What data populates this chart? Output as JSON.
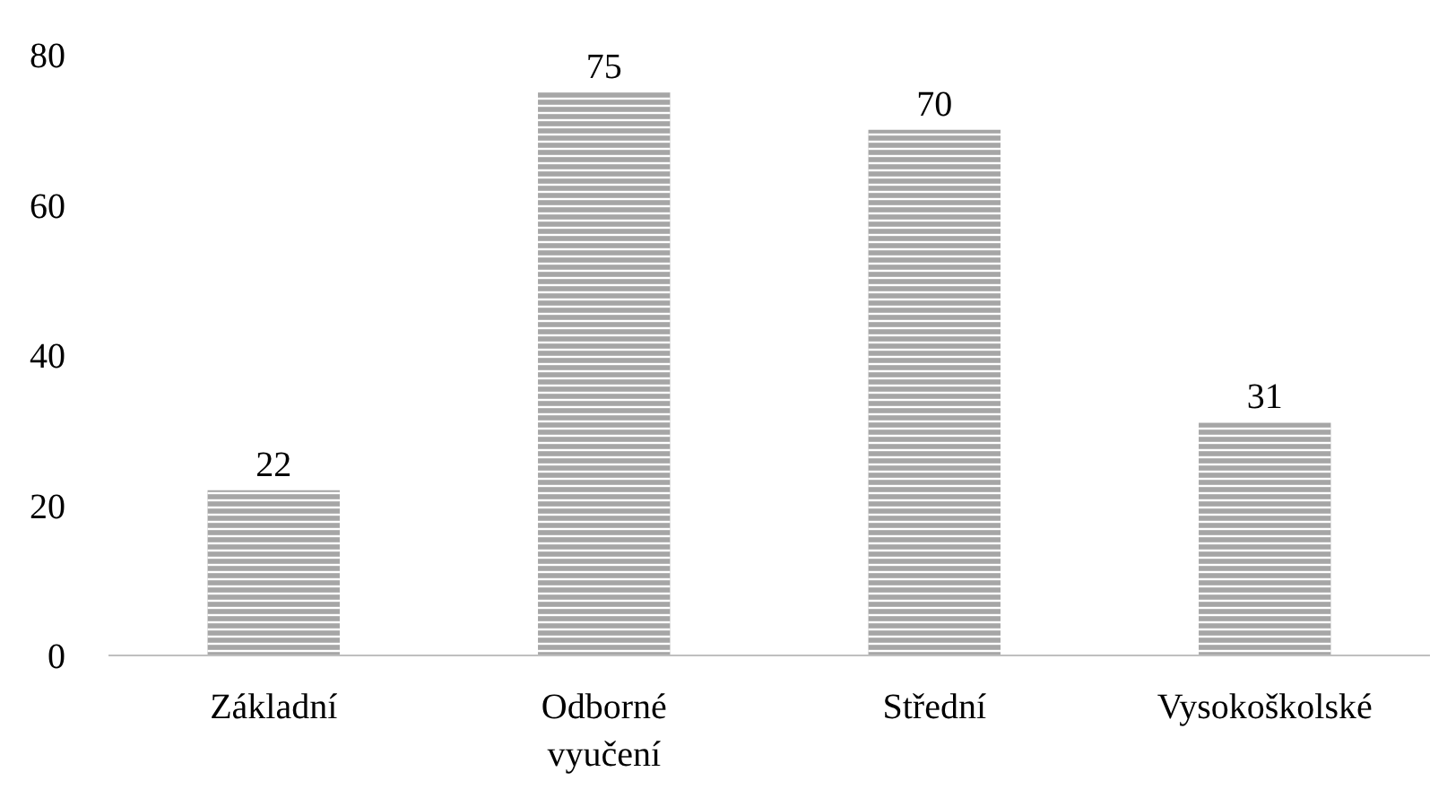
{
  "chart_data": {
    "type": "bar",
    "categories": [
      "Základní",
      "Odborné vyučení",
      "Střední",
      "Vysokoškolské"
    ],
    "values": [
      22,
      75,
      70,
      31
    ],
    "color": "#a6a6a6",
    "ylim": [
      0,
      80
    ],
    "yticks": [
      0,
      20,
      40,
      60,
      80
    ],
    "grid": false,
    "data_labels": true
  }
}
